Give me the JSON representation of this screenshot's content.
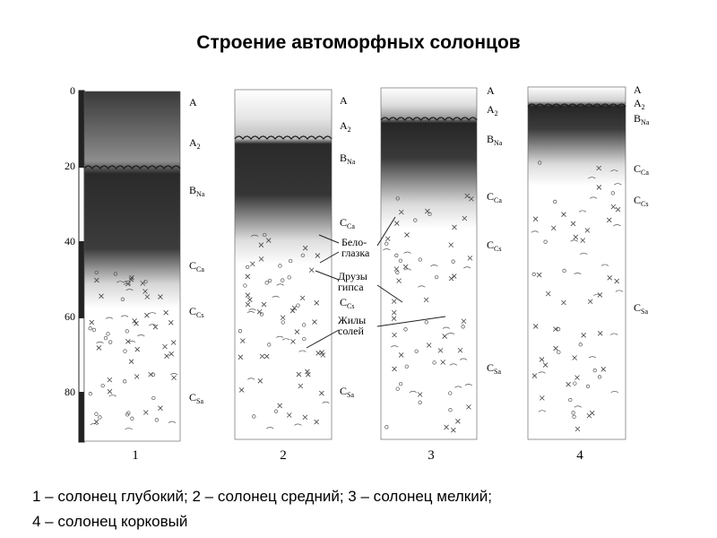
{
  "title": "Строение автоморфных солонцов",
  "depth_scale": {
    "ticks": [
      "0",
      "20",
      "40",
      "60",
      "80"
    ],
    "tick_values": [
      0,
      20,
      40,
      60,
      80
    ]
  },
  "profiles": [
    {
      "number": "1",
      "horizons": [
        {
          "base": "A"
        },
        {
          "base": "A",
          "sub": "2"
        },
        {
          "base": "B",
          "sub": "Na"
        },
        {
          "base": "C",
          "sub": "Ca"
        },
        {
          "base": "C",
          "sub": "Cs"
        },
        {
          "base": "C",
          "sub": "Sa"
        }
      ]
    },
    {
      "number": "2",
      "horizons": [
        {
          "base": "A"
        },
        {
          "base": "A",
          "sub": "2"
        },
        {
          "base": "B",
          "sub": "Na"
        },
        {
          "base": "C",
          "sub": "Ca"
        },
        {
          "base": "C",
          "sub": "Cs"
        },
        {
          "base": "C",
          "sub": "Sa"
        }
      ]
    },
    {
      "number": "3",
      "horizons": [
        {
          "base": "A"
        },
        {
          "base": "A",
          "sub": "2"
        },
        {
          "base": "B",
          "sub": "Na"
        },
        {
          "base": "C",
          "sub": "Ca"
        },
        {
          "base": "C",
          "sub": "Cs"
        },
        {
          "base": "C",
          "sub": "Sa"
        }
      ]
    },
    {
      "number": "4",
      "horizons": [
        {
          "base": "A"
        },
        {
          "base": "A",
          "sub": "2"
        },
        {
          "base": "B",
          "sub": "Na"
        },
        {
          "base": "C",
          "sub": "Ca"
        },
        {
          "base": "C",
          "sub": "Cs"
        },
        {
          "base": "C",
          "sub": "Sa"
        }
      ]
    }
  ],
  "annotations": [
    {
      "lines": [
        "Бело-",
        "глазка"
      ]
    },
    {
      "lines": [
        "Друзы",
        "гипса"
      ]
    },
    {
      "lines": [
        "Жилы",
        "солей"
      ]
    }
  ],
  "caption": {
    "line1": "1 – солонец глубокий; 2 – солонец средний; 3 – солонец мелкий;",
    "line2": "4 – солонец корковый"
  }
}
